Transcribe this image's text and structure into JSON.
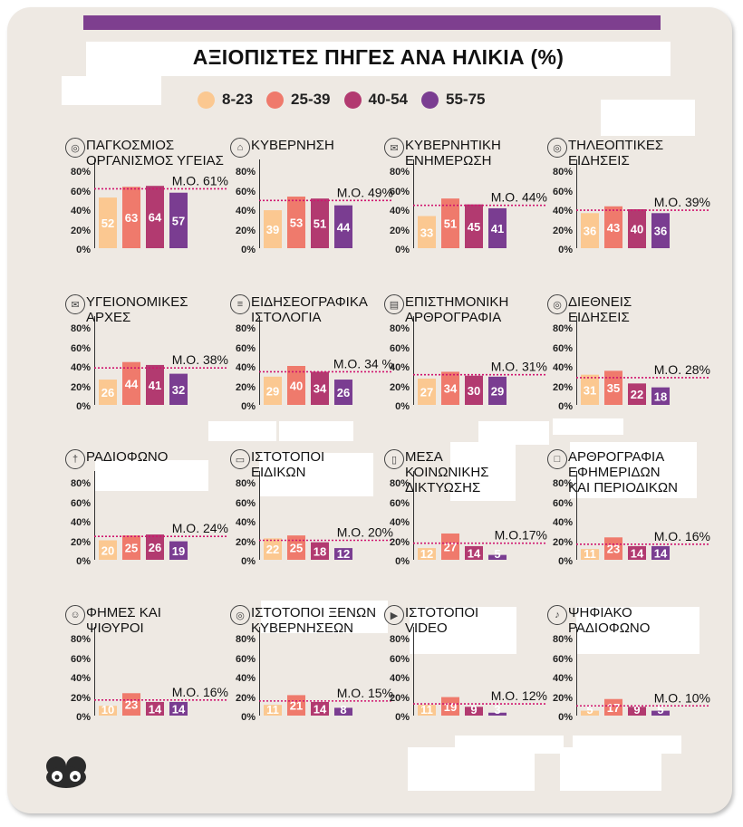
{
  "title": "ΑΞΙΟΠΙΣΤΕΣ ΠΗΓΕΣ ΑΝΑ ΗΛΙΚΙΑ (%)",
  "chart_data": {
    "type": "bar",
    "title": "ΑΞΙΟΠΙΣΤΕΣ ΠΗΓΕΣ ΑΝΑ ΗΛΙΚΙΑ (%)",
    "series_names": [
      "8-23",
      "25-39",
      "40-54",
      "55-75"
    ],
    "colors": [
      "#fbc891",
      "#ef7a6c",
      "#b23a70",
      "#7a3d91"
    ],
    "average_line_color": "#d0156f",
    "y_ticks": [
      "0%",
      "20%",
      "40%",
      "60%",
      "80%"
    ],
    "ylim": [
      0,
      80
    ],
    "panels": [
      {
        "label": "ΠΑΓΚΟΣΜΙΟΣ\nΟΡΓΑΝΙΣΜΟΣ ΥΓΕΙΑΣ",
        "icon": "globe-icon",
        "values": [
          52,
          63,
          64,
          57
        ],
        "avg": 61,
        "avg_label": "Μ.Ο. 61%"
      },
      {
        "label": "ΚΥΒΕΡΝΗΣΗ",
        "icon": "building-icon",
        "values": [
          39,
          53,
          51,
          44
        ],
        "avg": 49,
        "avg_label": "Μ.Ο. 49%"
      },
      {
        "label": "ΚΥΒΕΡΝΗΤΙΚΗ\nΕΝΗΜΕΡΩΣΗ",
        "icon": "envelope-icon",
        "values": [
          33,
          51,
          45,
          41
        ],
        "avg": 44,
        "avg_label": "Μ.Ο. 44%"
      },
      {
        "label": "ΤΗΛΕΟΠΤΙΚΕΣ\nΕΙΔΗΣΕΙΣ",
        "icon": "globe-icon",
        "values": [
          36,
          43,
          40,
          36
        ],
        "avg": 39,
        "avg_label": "Μ.Ο. 39%"
      },
      {
        "label": "ΥΓΕΙΟΝΟΜΙΚΕΣ\nΑΡΧΕΣ",
        "icon": "envelope-icon",
        "values": [
          26,
          44,
          41,
          32
        ],
        "avg": 38,
        "avg_label": "Μ.Ο. 38%"
      },
      {
        "label": "ΕΙΔΗΣΕΟΓΡΑΦΙΚΑ\nΙΣΤΟΛΟΓΙΑ",
        "icon": "list-icon",
        "values": [
          29,
          40,
          34,
          26
        ],
        "avg": 34,
        "avg_label": "Μ.Ο. 34 %"
      },
      {
        "label": "ΕΠΙΣΤΗΜΟΝΙΚΗ\nΑΡΘΡΟΓΡΑΦΙΑ",
        "icon": "book-icon",
        "values": [
          27,
          34,
          30,
          29
        ],
        "avg": 31,
        "avg_label": "Μ.Ο. 31%"
      },
      {
        "label": "ΔΙΕΘΝΕΙΣ\nΕΙΔΗΣΕΙΣ",
        "icon": "globe-icon",
        "values": [
          31,
          35,
          22,
          18
        ],
        "avg": 28,
        "avg_label": "Μ.Ο. 28%"
      },
      {
        "label": "ΡΑΔΙΟΦΩΝΟ",
        "icon": "antenna-icon",
        "values": [
          20,
          25,
          26,
          19
        ],
        "avg": 24,
        "avg_label": "Μ.Ο. 24%"
      },
      {
        "label": "ΙΣΤΟΤΟΠΟΙ\nΕΙΔΙΚΩΝ",
        "icon": "laptop-icon",
        "values": [
          22,
          25,
          18,
          12
        ],
        "avg": 20,
        "avg_label": "Μ.Ο. 20%"
      },
      {
        "label": "ΜΕΣΑ\nΚΟΙΝΩΝΙΚΗΣ\nΔΙΚΤΥΩΣΗΣ",
        "icon": "phone-icon",
        "values": [
          12,
          27,
          14,
          5
        ],
        "avg": 17,
        "avg_label": "Μ.Ο.17%"
      },
      {
        "label": "ΑΡΘΡΟΓΡΑΦΙΑ\nΕΦΗΜΕΡΙΔΩΝ\nΚΑΙ ΠΕΡΙΟΔΙΚΩΝ",
        "icon": "document-icon",
        "values": [
          11,
          23,
          14,
          14
        ],
        "avg": 16,
        "avg_label": "Μ.Ο. 16%"
      },
      {
        "label": "ΦΗΜΕΣ ΚΑΙ\nΨΙΘΥΡΟΙ",
        "icon": "people-icon",
        "values": [
          10,
          23,
          14,
          14
        ],
        "avg": 16,
        "avg_label": "Μ.Ο. 16%"
      },
      {
        "label": "ΙΣΤΟΤΟΠΟΙ ΞΕΝΩΝ\nΚΥΒΕΡΝΗΣΕΩΝ",
        "icon": "globe-icon",
        "values": [
          11,
          21,
          14,
          8
        ],
        "avg": 15,
        "avg_label": "Μ.Ο. 15%"
      },
      {
        "label": "ΙΣΤΟΤΟΠΟΙ\nVIDEO",
        "icon": "video-icon",
        "values": [
          11,
          19,
          9,
          3
        ],
        "avg": 12,
        "avg_label": "Μ.Ο. 12%"
      },
      {
        "label": "ΨΗΦΙΑΚΟ\nΡΑΔΙΟΦΩΝΟ",
        "icon": "radio-icon",
        "values": [
          5,
          17,
          9,
          5
        ],
        "avg": 10,
        "avg_label": "Μ.Ο. 10%"
      }
    ]
  }
}
